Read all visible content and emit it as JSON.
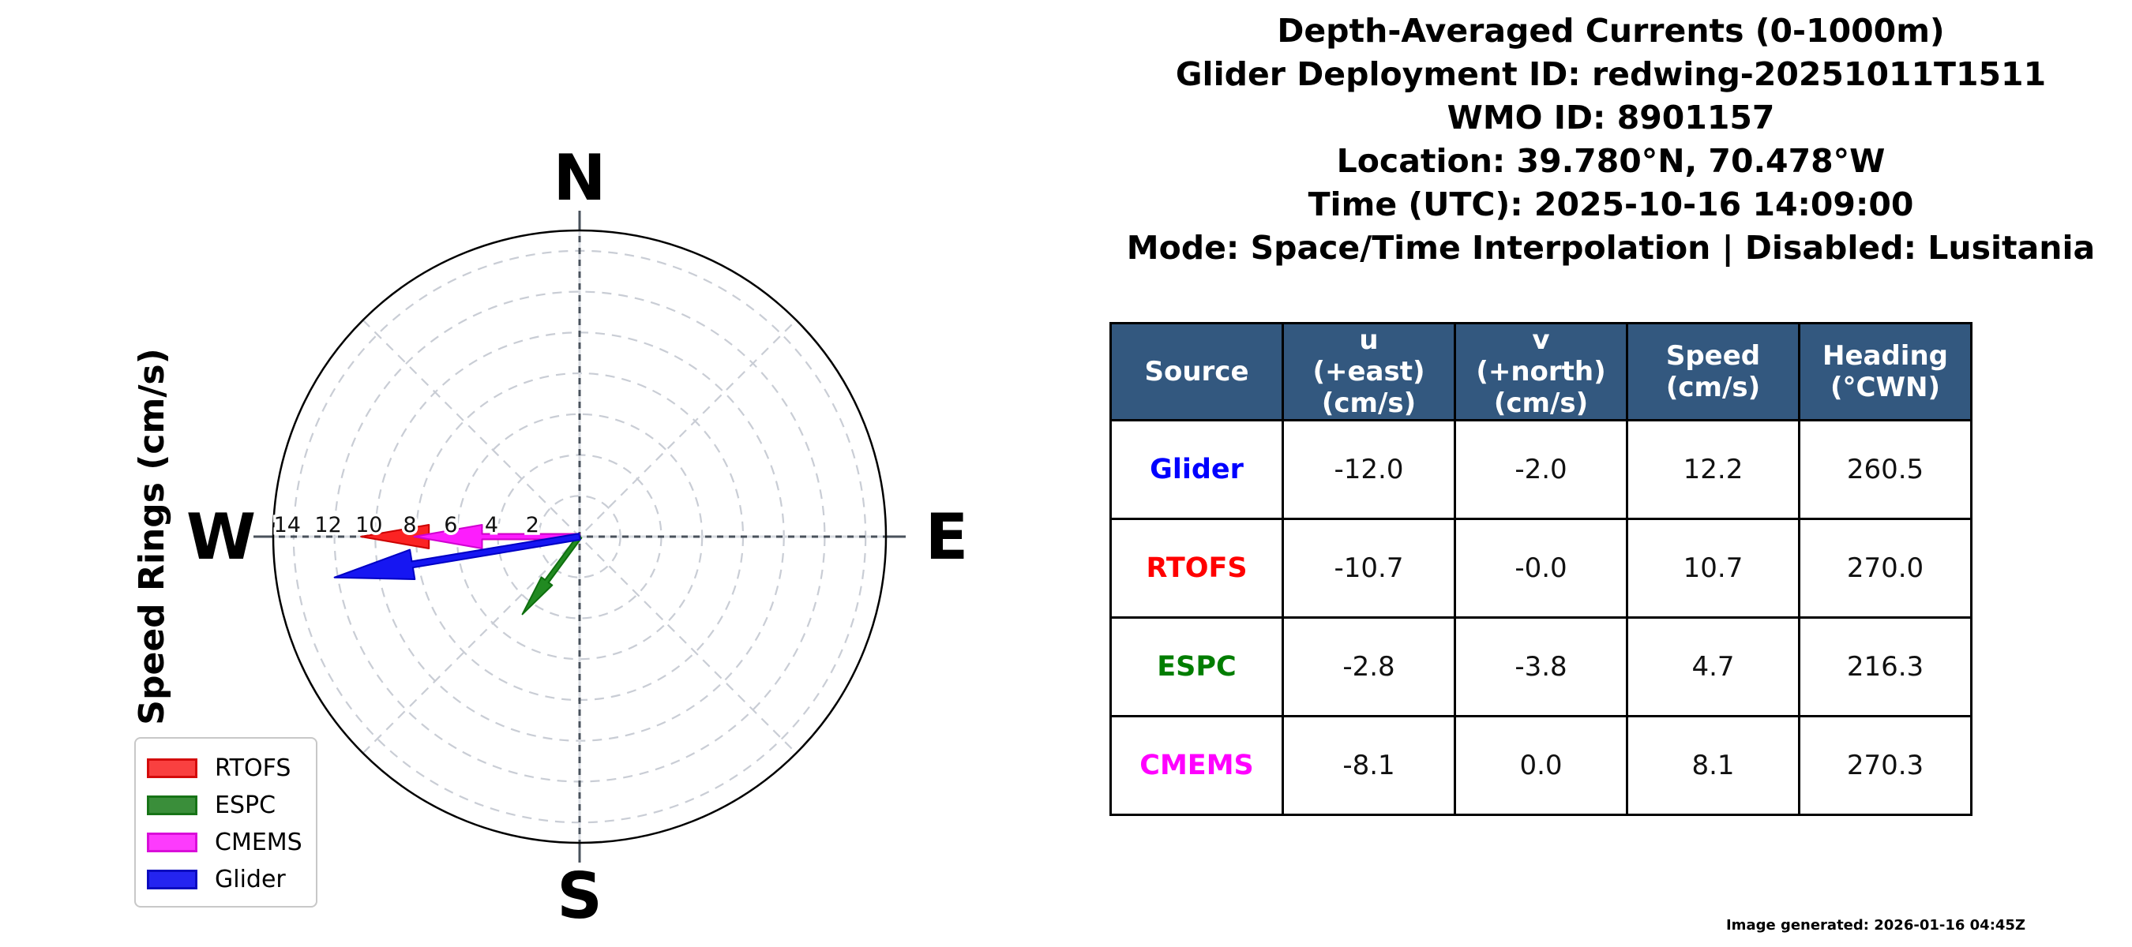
{
  "title_block": {
    "lines": [
      "Depth-Averaged Currents (0-1000m)",
      "Glider Deployment ID: redwing-20251011T1511",
      "WMO ID: 8901157",
      "Location: 39.780°N, 70.478°W",
      "Time (UTC): 2025-10-16 14:09:00",
      "Mode: Space/Time Interpolation | Disabled: Lusitania"
    ]
  },
  "compass": {
    "north": "N",
    "east": "E",
    "south": "S",
    "west": "W"
  },
  "polar_axis_label": "Speed Rings (cm/s)",
  "chart_data": {
    "type": "polar_quiver",
    "title": "Depth-Averaged Currents (0-1000m)",
    "radial_axis_label": "Speed Rings (cm/s)",
    "ring_unit": "cm/s",
    "ring_ticks": [
      14,
      12,
      10,
      8,
      6,
      4,
      2
    ],
    "ring_max": 15,
    "grid": "dashed rings every 2 cm/s with 45-degree diagonal spokes",
    "series": [
      {
        "name": "Glider",
        "u": -12.0,
        "v": -2.0,
        "speed": 12.2,
        "heading": 260.5,
        "color": "#1616f2",
        "edge": "#0000c4"
      },
      {
        "name": "RTOFS",
        "u": -10.7,
        "v": -0.0,
        "speed": 10.7,
        "heading": 270.0,
        "color": "#fb2323",
        "edge": "#cc0000"
      },
      {
        "name": "ESPC",
        "u": -2.8,
        "v": -3.8,
        "speed": 4.7,
        "heading": 216.3,
        "color": "#218a21",
        "edge": "#0e6e0e"
      },
      {
        "name": "CMEMS",
        "u": -8.1,
        "v": 0.0,
        "speed": 8.1,
        "heading": 270.3,
        "color": "#fd1dfd",
        "edge": "#d000d0"
      }
    ],
    "draw_order": [
      "RTOFS",
      "ESPC",
      "CMEMS",
      "Glider"
    ]
  },
  "legend": {
    "items": [
      {
        "label": "RTOFS",
        "color": "#f94040",
        "border": "#d40b0b"
      },
      {
        "label": "ESPC",
        "color": "#3a8e3a",
        "border": "#177417"
      },
      {
        "label": "CMEMS",
        "color": "#fd3bfd",
        "border": "#d90ed9"
      },
      {
        "label": "Glider",
        "color": "#2424f0",
        "border": "#0b0bbf"
      }
    ]
  },
  "table": {
    "header_bg": "#33587f",
    "headers": [
      "Source",
      "u\n(+east)\n(cm/s)",
      "v\n(+north)\n(cm/s)",
      "Speed\n(cm/s)",
      "Heading\n(°CWN)"
    ],
    "rows": [
      {
        "source": "Glider",
        "color": "#0000ff",
        "u": "-12.0",
        "v": "-2.0",
        "speed": "12.2",
        "heading": "260.5"
      },
      {
        "source": "RTOFS",
        "color": "#ff0000",
        "u": "-10.7",
        "v": "-0.0",
        "speed": "10.7",
        "heading": "270.0"
      },
      {
        "source": "ESPC",
        "color": "#007d00",
        "u": "-2.8",
        "v": "-3.8",
        "speed": "4.7",
        "heading": "216.3"
      },
      {
        "source": "CMEMS",
        "color": "#ff00ff",
        "u": "-8.1",
        "v": "0.0",
        "speed": "8.1",
        "heading": "270.3"
      }
    ]
  },
  "footer": {
    "generated": "Image generated: 2026-01-16 04:45Z"
  }
}
